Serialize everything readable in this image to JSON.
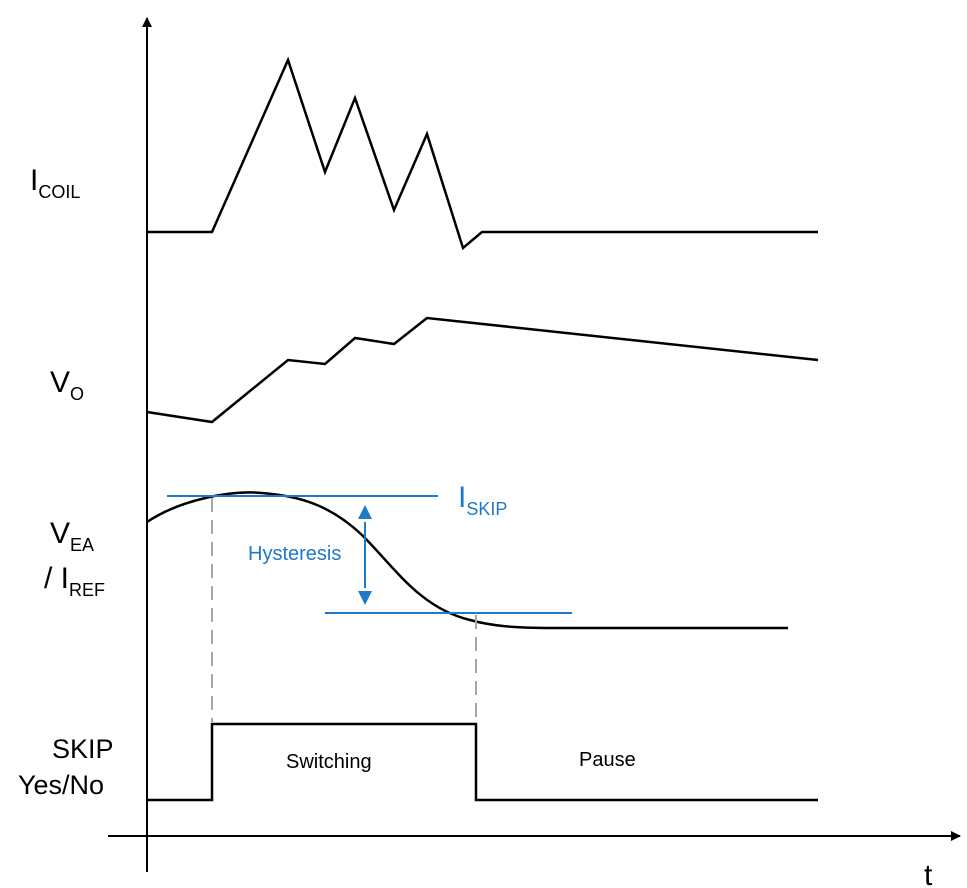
{
  "labels": {
    "icoil": {
      "main": "I",
      "sub": "COIL"
    },
    "vo": {
      "main": "V",
      "sub": "O"
    },
    "vea": {
      "main": "V",
      "sub": "EA"
    },
    "iref": {
      "main": "/ I",
      "sub": "REF"
    },
    "skip_line1": "SKIP",
    "skip_line2": "Yes/No",
    "iskip": {
      "main": "I",
      "sub": "SKIP"
    },
    "hysteresis": "Hysteresis",
    "switching": "Switching",
    "pause": "Pause",
    "time_axis": "t"
  },
  "colors": {
    "trace": "#000000",
    "annotation": "#1f78c8",
    "dashed_guide": "#a6a6a6"
  }
}
